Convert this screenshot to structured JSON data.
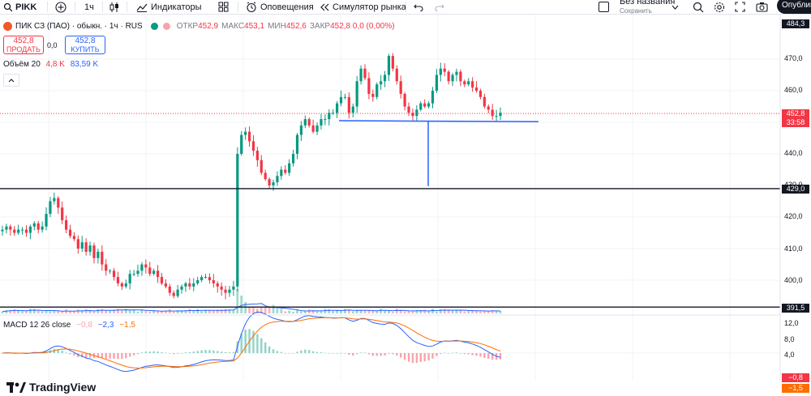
{
  "toolbar": {
    "symbol": "PIKK",
    "interval": "1ч",
    "indicators": "Индикаторы",
    "alerts": "Оповещения",
    "replay": "Симулятор рынка",
    "layout_name": "Без названия",
    "layout_status": "Сохранить",
    "publish": "Опублик"
  },
  "legend": {
    "title": "ПИК СЗ (ПАО) · обыкн. · 1ч · RUS",
    "open_k": "ОТКР",
    "open_v": "452,9",
    "high_k": "МАКС",
    "high_v": "453,1",
    "low_k": "МИН",
    "low_v": "452,6",
    "close_k": "ЗАКР",
    "close_v": "452,8 0,0 (0,00%)"
  },
  "trade": {
    "sell_price": "452,8",
    "sell_label": "ПРОДАТЬ",
    "spread": "0,0",
    "buy_price": "452,8",
    "buy_label": "КУПИТЬ"
  },
  "volume_legend": {
    "name": "Объём 20",
    "v1": "4,8 K",
    "v2": "83,59 K"
  },
  "macd_legend": {
    "name": "MACD 12 26 close",
    "v1": "−0,8",
    "v2": "−2,3",
    "v3": "−1,5"
  },
  "price_axis": {
    "labels": [
      "470,0",
      "460,0",
      "440,0",
      "430,0",
      "420,0",
      "410,0",
      "400,0"
    ],
    "top_tag": "484,3",
    "price_tag": "452,8",
    "countdown": "33:58",
    "line_429": "429,0",
    "line_391": "391,5"
  },
  "macd_axis": {
    "labels": [
      "12,0",
      "8,0",
      "4,0",
      "0,0",
      "−4,0"
    ],
    "tag_macd": "−0,8",
    "tag_signal": "−1,5"
  },
  "brand": {
    "name": "TradingView"
  },
  "colors": {
    "up": "#089981",
    "down": "#f23645",
    "accent": "#2962ff",
    "macd": "#2962ff",
    "signal": "#ff6d00"
  },
  "chart_data": {
    "type": "candlestick",
    "symbol": "PIKK",
    "interval": "1ч",
    "ylim": [
      387,
      486
    ],
    "close_path": [
      416,
      417,
      416,
      415,
      416,
      416,
      415,
      417,
      418,
      416,
      417,
      421,
      425,
      426,
      423,
      419,
      416,
      414,
      413,
      410,
      412,
      409,
      411,
      407,
      409,
      405,
      403,
      403,
      401,
      399,
      398,
      399,
      402,
      402,
      403,
      405,
      404,
      402,
      403,
      401,
      399,
      398,
      396,
      395,
      397,
      398,
      399,
      398,
      399,
      400,
      401,
      401,
      400,
      399,
      398,
      397,
      396,
      397,
      398,
      440,
      446,
      447,
      444,
      441,
      438,
      434,
      432,
      430,
      431,
      433,
      435,
      434,
      437,
      440,
      446,
      449,
      451,
      449,
      447,
      449,
      451,
      451,
      453,
      453,
      456,
      458,
      458,
      453,
      455,
      463,
      467,
      464,
      459,
      458,
      462,
      463,
      465,
      471,
      467,
      463,
      459,
      455,
      453,
      452,
      454,
      456,
      455,
      456,
      460,
      465,
      467,
      466,
      463,
      465,
      466,
      463,
      462,
      463,
      461,
      460,
      458,
      455,
      454,
      452,
      452,
      453
    ],
    "horizontal_levels": [
      429.0,
      391.5
    ],
    "support_line": 450.5,
    "last_price": 452.8,
    "macd_ylim": [
      -2.5,
      13
    ]
  }
}
